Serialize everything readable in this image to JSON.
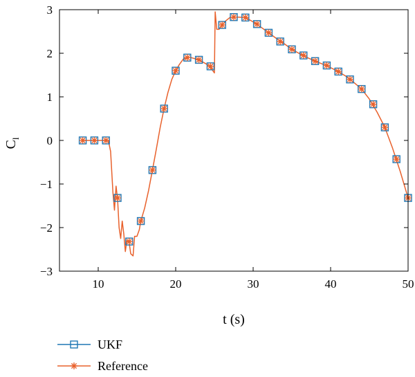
{
  "chart_data": {
    "type": "line",
    "title": "",
    "xlabel": "t (s)",
    "ylabel": "C",
    "ylabel_sub": "l",
    "xlim": [
      5,
      50
    ],
    "ylim": [
      -3,
      3
    ],
    "xticks": [
      10,
      20,
      30,
      40,
      50
    ],
    "yticks": [
      -3,
      -2,
      -1,
      0,
      1,
      2,
      3
    ],
    "xtick_labels": [
      "10",
      "20",
      "30",
      "40",
      "50"
    ],
    "ytick_labels": [
      "−3",
      "−2",
      "−1",
      "0",
      "1",
      "2",
      "3"
    ],
    "grid": false,
    "legend_position": "bottom-left",
    "colors": {
      "ukf": "#1f77b4",
      "reference": "#e8612c"
    },
    "series": [
      {
        "name": "UKF",
        "marker": "square",
        "x": [
          8,
          9.5,
          11,
          12.5,
          14,
          15.5,
          17,
          18.5,
          20,
          21.5,
          23,
          24.5,
          26,
          27.5,
          29,
          30.5,
          32,
          33.5,
          35,
          36.5,
          38,
          39.5,
          41,
          42.5,
          44,
          45.5,
          47,
          48.5,
          50
        ],
        "y": [
          0,
          0,
          0,
          -1.32,
          -2.32,
          -1.85,
          -0.68,
          0.73,
          1.6,
          1.9,
          1.85,
          1.7,
          2.65,
          2.83,
          2.82,
          2.67,
          2.47,
          2.27,
          2.09,
          1.95,
          1.82,
          1.72,
          1.58,
          1.4,
          1.18,
          0.83,
          0.3,
          -0.43,
          -1.32
        ]
      },
      {
        "name": "Reference",
        "marker": "asterisk",
        "x": [
          8,
          9.5,
          11,
          12.5,
          14,
          15.5,
          17,
          18.5,
          20,
          21.5,
          23,
          24.5,
          26,
          27.5,
          29,
          30.5,
          32,
          33.5,
          35,
          36.5,
          38,
          39.5,
          41,
          42.5,
          44,
          45.5,
          47,
          48.5,
          50
        ],
        "y": [
          0,
          0,
          0,
          -1.32,
          -2.32,
          -1.85,
          -0.68,
          0.73,
          1.6,
          1.9,
          1.85,
          1.7,
          2.65,
          2.83,
          2.82,
          2.67,
          2.47,
          2.27,
          2.09,
          1.95,
          1.82,
          1.72,
          1.58,
          1.4,
          1.18,
          0.83,
          0.3,
          -0.43,
          -1.32
        ],
        "curve_x": [
          8,
          11.3,
          11.6,
          11.9,
          12.1,
          12.3,
          12.5,
          12.7,
          12.9,
          13.1,
          13.3,
          13.5,
          13.7,
          14,
          14.2,
          14.5,
          14.7,
          15,
          15.3,
          15.5,
          16,
          16.5,
          17,
          17.5,
          18,
          18.5,
          19,
          19.5,
          20,
          20.5,
          21,
          21.5,
          22,
          23,
          24,
          24.6,
          25,
          25.1,
          25.3,
          25.6,
          26,
          26.5,
          27,
          27.5,
          28,
          29,
          30,
          31,
          32,
          33,
          34,
          35,
          36,
          37,
          38,
          39,
          40,
          41,
          42,
          43,
          44,
          45,
          46,
          47,
          48,
          49,
          50
        ],
        "curve_y": [
          0,
          0,
          -0.25,
          -1.2,
          -1.6,
          -1.05,
          -1.35,
          -2.0,
          -2.25,
          -1.85,
          -2.15,
          -2.55,
          -2.3,
          -2.35,
          -2.6,
          -2.65,
          -2.2,
          -2.2,
          -2.05,
          -1.85,
          -1.55,
          -1.15,
          -0.68,
          -0.2,
          0.3,
          0.73,
          1.1,
          1.4,
          1.6,
          1.75,
          1.87,
          1.9,
          1.9,
          1.85,
          1.75,
          1.65,
          1.55,
          2.95,
          2.55,
          2.55,
          2.65,
          2.75,
          2.82,
          2.83,
          2.83,
          2.82,
          2.72,
          2.6,
          2.47,
          2.34,
          2.22,
          2.09,
          1.99,
          1.9,
          1.82,
          1.75,
          1.67,
          1.58,
          1.47,
          1.33,
          1.18,
          0.95,
          0.65,
          0.3,
          -0.18,
          -0.72,
          -1.32
        ]
      }
    ]
  }
}
